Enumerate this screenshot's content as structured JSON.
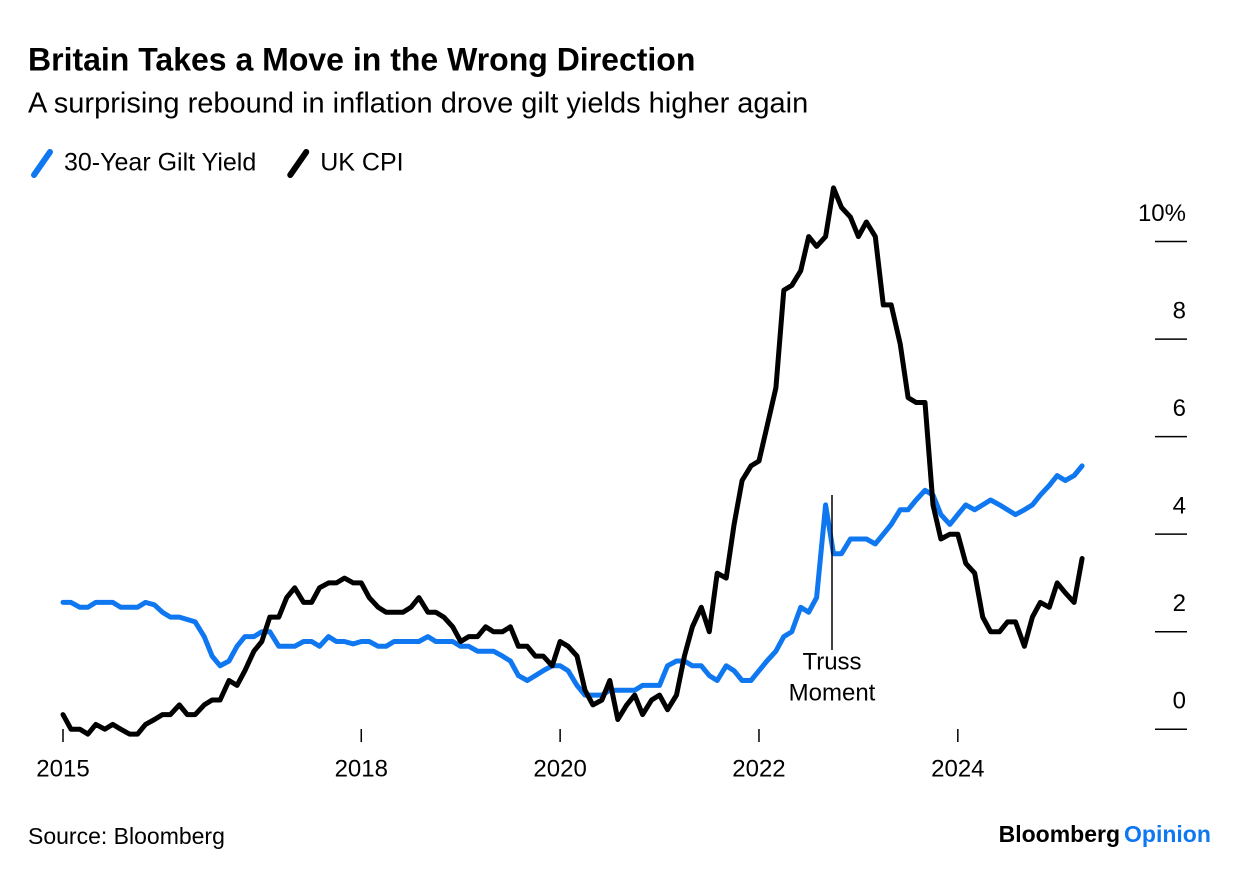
{
  "chart_data": {
    "type": "line",
    "title": "Britain Takes a Move in the Wrong Direction",
    "subtitle": "A surprising rebound in inflation drove gilt yields higher again",
    "x": [
      2015.0,
      2015.08,
      2015.17,
      2015.25,
      2015.33,
      2015.42,
      2015.5,
      2015.58,
      2015.67,
      2015.75,
      2015.83,
      2015.92,
      2016.0,
      2016.08,
      2016.17,
      2016.25,
      2016.33,
      2016.42,
      2016.5,
      2016.58,
      2016.67,
      2016.75,
      2016.83,
      2016.92,
      2017.0,
      2017.08,
      2017.17,
      2017.25,
      2017.33,
      2017.42,
      2017.5,
      2017.58,
      2017.67,
      2017.75,
      2017.83,
      2017.92,
      2018.0,
      2018.08,
      2018.17,
      2018.25,
      2018.33,
      2018.42,
      2018.5,
      2018.58,
      2018.67,
      2018.75,
      2018.83,
      2018.92,
      2019.0,
      2019.08,
      2019.17,
      2019.25,
      2019.33,
      2019.42,
      2019.5,
      2019.58,
      2019.67,
      2019.75,
      2019.83,
      2019.92,
      2020.0,
      2020.08,
      2020.17,
      2020.25,
      2020.33,
      2020.42,
      2020.5,
      2020.58,
      2020.67,
      2020.75,
      2020.83,
      2020.92,
      2021.0,
      2021.08,
      2021.17,
      2021.25,
      2021.33,
      2021.42,
      2021.5,
      2021.58,
      2021.67,
      2021.75,
      2021.83,
      2021.92,
      2022.0,
      2022.08,
      2022.17,
      2022.25,
      2022.33,
      2022.42,
      2022.5,
      2022.58,
      2022.67,
      2022.75,
      2022.83,
      2022.92,
      2023.0,
      2023.08,
      2023.17,
      2023.25,
      2023.33,
      2023.42,
      2023.5,
      2023.58,
      2023.67,
      2023.75,
      2023.83,
      2023.92,
      2024.0,
      2024.08,
      2024.17,
      2024.25,
      2024.33,
      2024.42,
      2024.5,
      2024.58,
      2024.67,
      2024.75,
      2024.83,
      2024.92,
      2025.0,
      2025.08,
      2025.17,
      2025.25
    ],
    "series": [
      {
        "name": "30-Year Gilt Yield",
        "color": "#0f78f0",
        "values": [
          2.6,
          2.6,
          2.5,
          2.5,
          2.6,
          2.6,
          2.6,
          2.5,
          2.5,
          2.5,
          2.6,
          2.55,
          2.4,
          2.3,
          2.3,
          2.25,
          2.2,
          1.9,
          1.5,
          1.3,
          1.4,
          1.7,
          1.9,
          1.9,
          2.0,
          2.0,
          1.7,
          1.7,
          1.7,
          1.8,
          1.8,
          1.7,
          1.9,
          1.8,
          1.8,
          1.75,
          1.8,
          1.8,
          1.7,
          1.7,
          1.8,
          1.8,
          1.8,
          1.8,
          1.9,
          1.8,
          1.8,
          1.8,
          1.7,
          1.7,
          1.6,
          1.6,
          1.6,
          1.5,
          1.4,
          1.1,
          1.0,
          1.1,
          1.2,
          1.3,
          1.3,
          1.2,
          0.9,
          0.7,
          0.7,
          0.7,
          0.8,
          0.8,
          0.8,
          0.8,
          0.9,
          0.9,
          0.9,
          1.3,
          1.4,
          1.4,
          1.3,
          1.3,
          1.1,
          1.0,
          1.3,
          1.2,
          1.0,
          1.0,
          1.2,
          1.4,
          1.6,
          1.9,
          2.0,
          2.5,
          2.4,
          2.7,
          4.6,
          3.6,
          3.6,
          3.9,
          3.9,
          3.9,
          3.8,
          4.0,
          4.2,
          4.5,
          4.5,
          4.7,
          4.9,
          4.8,
          4.4,
          4.2,
          4.4,
          4.6,
          4.5,
          4.6,
          4.7,
          4.6,
          4.5,
          4.4,
          4.5,
          4.6,
          4.8,
          5.0,
          5.2,
          5.1,
          5.2,
          5.4
        ]
      },
      {
        "name": "UK CPI",
        "color": "#000000",
        "values": [
          0.3,
          0.0,
          0.0,
          -0.1,
          0.1,
          0.0,
          0.1,
          0.0,
          -0.1,
          -0.1,
          0.1,
          0.2,
          0.3,
          0.3,
          0.5,
          0.3,
          0.3,
          0.5,
          0.6,
          0.6,
          1.0,
          0.9,
          1.2,
          1.6,
          1.8,
          2.3,
          2.3,
          2.7,
          2.9,
          2.6,
          2.6,
          2.9,
          3.0,
          3.0,
          3.1,
          3.0,
          3.0,
          2.7,
          2.5,
          2.4,
          2.4,
          2.4,
          2.5,
          2.7,
          2.4,
          2.4,
          2.3,
          2.1,
          1.8,
          1.9,
          1.9,
          2.1,
          2.0,
          2.0,
          2.1,
          1.7,
          1.7,
          1.5,
          1.5,
          1.3,
          1.8,
          1.7,
          1.5,
          0.8,
          0.5,
          0.6,
          1.0,
          0.2,
          0.5,
          0.7,
          0.3,
          0.6,
          0.7,
          0.4,
          0.7,
          1.5,
          2.1,
          2.5,
          2.0,
          3.2,
          3.1,
          4.2,
          5.1,
          5.4,
          5.5,
          6.2,
          7.0,
          9.0,
          9.1,
          9.4,
          10.1,
          9.9,
          10.1,
          11.1,
          10.7,
          10.5,
          10.1,
          10.4,
          10.1,
          8.7,
          8.7,
          7.9,
          6.8,
          6.7,
          6.7,
          4.6,
          3.9,
          4.0,
          4.0,
          3.4,
          3.2,
          2.3,
          2.0,
          2.0,
          2.2,
          2.2,
          1.7,
          2.3,
          2.6,
          2.5,
          3.0,
          2.8,
          2.6,
          3.5
        ]
      }
    ],
    "xlim": [
      2015,
      2025.43
    ],
    "xticks": [
      2015,
      2018,
      2020,
      2022,
      2024
    ],
    "ylim": [
      -0.2,
      11.2
    ],
    "yticks": [
      0,
      2,
      4,
      6,
      8,
      {
        "value": 10,
        "label": "10%"
      }
    ],
    "annotation": [
      "Truss",
      "Moment"
    ],
    "source": "Source: Bloomberg",
    "brand": [
      "Bloomberg",
      "Opinion"
    ]
  }
}
